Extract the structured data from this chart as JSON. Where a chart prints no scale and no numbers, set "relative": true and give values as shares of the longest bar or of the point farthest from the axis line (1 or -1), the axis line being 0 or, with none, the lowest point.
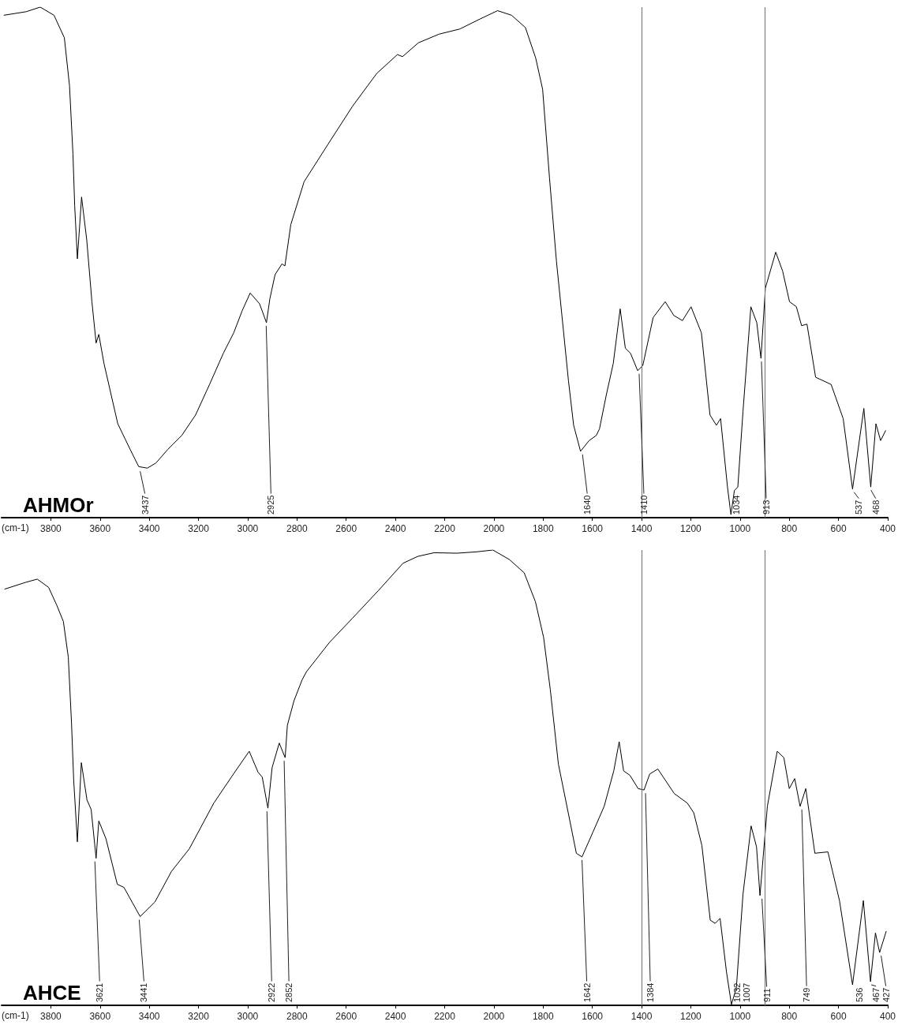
{
  "chart_data": [
    {
      "type": "line",
      "title": "AHMOr",
      "xlabel": "(cm-1)",
      "relative": true,
      "xlim": [
        4000,
        400
      ],
      "xticks": [
        3800,
        3600,
        3400,
        3200,
        3000,
        2800,
        2600,
        2400,
        2200,
        2000,
        1800,
        1600,
        1400,
        1200,
        1000,
        800,
        600,
        400
      ],
      "series": [
        {
          "color": "#000000",
          "x": [
            3991,
            3900,
            3843,
            3787,
            3745,
            3724,
            3710,
            3703,
            3692,
            3675,
            3654,
            3633,
            3616,
            3605,
            3584,
            3528,
            3478,
            3443,
            3408,
            3373,
            3324,
            3268,
            3212,
            3155,
            3099,
            3057,
            3022,
            2990,
            2952,
            2924,
            2910,
            2889,
            2861,
            2849,
            2825,
            2771,
            2673,
            2574,
            2476,
            2392,
            2371,
            2307,
            2223,
            2139,
            2055,
            1985,
            1928,
            1872,
            1830,
            1802,
            1774,
            1746,
            1718,
            1697,
            1676,
            1648,
            1613,
            1584,
            1571,
            1543,
            1515,
            1487,
            1466,
            1445,
            1416,
            1395,
            1353,
            1304,
            1269,
            1234,
            1199,
            1157,
            1122,
            1096,
            1079,
            1051,
            1037,
            1023,
            1009,
            988,
            956,
            932,
            915,
            897,
            855,
            827,
            799,
            771,
            750,
            728,
            693,
            630,
            581,
            543,
            497,
            469,
            448,
            429,
            408
          ],
          "values": [
            0.984,
            0.991,
            1.0,
            0.984,
            0.94,
            0.846,
            0.712,
            0.611,
            0.507,
            0.628,
            0.544,
            0.423,
            0.342,
            0.359,
            0.302,
            0.184,
            0.134,
            0.1,
            0.097,
            0.107,
            0.134,
            0.161,
            0.201,
            0.261,
            0.322,
            0.362,
            0.406,
            0.44,
            0.419,
            0.382,
            0.429,
            0.476,
            0.497,
            0.493,
            0.574,
            0.658,
            0.732,
            0.806,
            0.87,
            0.907,
            0.903,
            0.93,
            0.947,
            0.957,
            0.977,
            0.993,
            0.984,
            0.96,
            0.9,
            0.839,
            0.665,
            0.503,
            0.369,
            0.268,
            0.181,
            0.13,
            0.151,
            0.161,
            0.174,
            0.241,
            0.302,
            0.409,
            0.332,
            0.322,
            0.288,
            0.298,
            0.392,
            0.423,
            0.396,
            0.386,
            0.413,
            0.362,
            0.201,
            0.181,
            0.194,
            0.06,
            0.006,
            0.053,
            0.06,
            0.208,
            0.413,
            0.382,
            0.312,
            0.45,
            0.52,
            0.483,
            0.423,
            0.413,
            0.376,
            0.379,
            0.275,
            0.261,
            0.194,
            0.056,
            0.214,
            0.06,
            0.184,
            0.151,
            0.171
          ]
        }
      ],
      "ref_lines": [
        {
          "axis": "x",
          "value": 1400,
          "color": "#c0504d"
        },
        {
          "axis": "x",
          "value": 900,
          "color": "#c0504d"
        }
      ],
      "annotations": [
        {
          "text": "3437",
          "x": 3437,
          "y": 0.097
        },
        {
          "text": "2925",
          "x": 2925,
          "y": 0.382
        },
        {
          "text": "1640",
          "x": 1640,
          "y": 0.13
        },
        {
          "text": "1410",
          "x": 1410,
          "y": 0.288
        },
        {
          "text": "1034",
          "x": 1034,
          "y": 0.006
        },
        {
          "text": "913",
          "x": 913,
          "y": 0.312
        },
        {
          "text": "537",
          "x": 537,
          "y": 0.056
        },
        {
          "text": "468",
          "x": 468,
          "y": 0.06
        }
      ]
    },
    {
      "type": "line",
      "title": "AHCE",
      "xlabel": "(cm-1)",
      "relative": true,
      "xlim": [
        4000,
        400
      ],
      "xticks": [
        3800,
        3600,
        3400,
        3200,
        3000,
        2800,
        2600,
        2400,
        2200,
        2000,
        1800,
        1600,
        1400,
        1200,
        1000,
        800,
        600,
        400
      ],
      "series": [
        {
          "color": "#000000",
          "x": [
            3988,
            3902,
            3855,
            3809,
            3776,
            3749,
            3729,
            3716,
            3707,
            3692,
            3676,
            3653,
            3636,
            3616,
            3605,
            3576,
            3530,
            3503,
            3437,
            3377,
            3310,
            3237,
            3138,
            3058,
            2994,
            2958,
            2941,
            2918,
            2901,
            2872,
            2848,
            2839,
            2812,
            2779,
            2761,
            2668,
            2575,
            2469,
            2369,
            2309,
            2243,
            2150,
            2070,
            2004,
            1937,
            1877,
            1831,
            1798,
            1771,
            1738,
            1698,
            1665,
            1642,
            1598,
            1552,
            1513,
            1491,
            1473,
            1447,
            1414,
            1390,
            1367,
            1334,
            1267,
            1214,
            1188,
            1155,
            1121,
            1101,
            1081,
            1055,
            1035,
            1015,
            988,
            955,
            933,
            919,
            889,
            849,
            822,
            800,
            778,
            756,
            733,
            696,
            643,
            596,
            543,
            499,
            470,
            450,
            433,
            406
          ],
          "values": [
            0.914,
            0.929,
            0.936,
            0.918,
            0.879,
            0.843,
            0.765,
            0.622,
            0.494,
            0.359,
            0.533,
            0.451,
            0.43,
            0.323,
            0.405,
            0.366,
            0.266,
            0.259,
            0.195,
            0.227,
            0.294,
            0.344,
            0.444,
            0.508,
            0.558,
            0.512,
            0.501,
            0.433,
            0.522,
            0.576,
            0.544,
            0.615,
            0.669,
            0.715,
            0.733,
            0.797,
            0.85,
            0.911,
            0.971,
            0.986,
            0.994,
            0.993,
            0.996,
            1.0,
            0.979,
            0.95,
            0.886,
            0.808,
            0.694,
            0.53,
            0.423,
            0.334,
            0.326,
            0.38,
            0.437,
            0.515,
            0.579,
            0.515,
            0.505,
            0.476,
            0.473,
            0.508,
            0.519,
            0.465,
            0.444,
            0.423,
            0.351,
            0.187,
            0.18,
            0.191,
            0.073,
            0.002,
            0.038,
            0.244,
            0.394,
            0.348,
            0.241,
            0.437,
            0.558,
            0.544,
            0.476,
            0.498,
            0.437,
            0.476,
            0.334,
            0.337,
            0.23,
            0.045,
            0.23,
            0.052,
            0.159,
            0.116,
            0.163
          ]
        }
      ],
      "ref_lines": [
        {
          "axis": "x",
          "value": 1400,
          "color": "#c0504d"
        },
        {
          "axis": "x",
          "value": 900,
          "color": "#c0504d"
        }
      ],
      "annotations": [
        {
          "text": "3621",
          "x": 3621,
          "y": 0.323
        },
        {
          "text": "3441",
          "x": 3441,
          "y": 0.195
        },
        {
          "text": "2922",
          "x": 2922,
          "y": 0.433
        },
        {
          "text": "2852",
          "x": 2852,
          "y": 0.544
        },
        {
          "text": "1642",
          "x": 1642,
          "y": 0.326
        },
        {
          "text": "1384",
          "x": 1384,
          "y": 0.473
        },
        {
          "text": "1032",
          "x": 1032,
          "y": 0.002
        },
        {
          "text": "1007",
          "x": 1007,
          "y": 0.038
        },
        {
          "text": "911",
          "x": 911,
          "y": 0.241
        },
        {
          "text": "749",
          "x": 749,
          "y": 0.437
        },
        {
          "text": "536",
          "x": 536,
          "y": 0.045
        },
        {
          "text": "467",
          "x": 467,
          "y": 0.052
        },
        {
          "text": "427",
          "x": 427,
          "y": 0.116
        }
      ]
    }
  ]
}
